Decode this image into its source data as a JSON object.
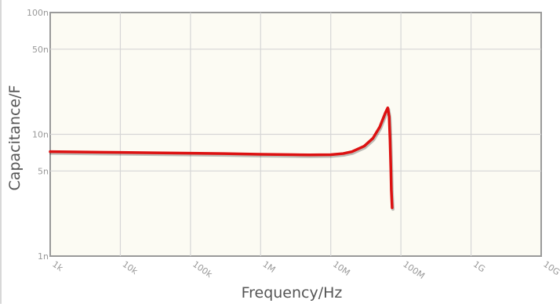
{
  "chart_data": {
    "type": "line",
    "title": "",
    "xlabel": "Frequency/Hz",
    "ylabel": "Capacitance/F",
    "x_scale": "log",
    "y_scale": "log",
    "xlim": [
      1000,
      10000000000
    ],
    "ylim": [
      1,
      100
    ],
    "grid": true,
    "x_ticks": [
      {
        "value": 1000,
        "label": "1k"
      },
      {
        "value": 10000,
        "label": "10k"
      },
      {
        "value": 100000,
        "label": "100k"
      },
      {
        "value": 1000000,
        "label": "1M"
      },
      {
        "value": 10000000,
        "label": "10M"
      },
      {
        "value": 100000000,
        "label": "100M"
      },
      {
        "value": 1000000000,
        "label": "1G"
      },
      {
        "value": 10000000000,
        "label": "10G"
      }
    ],
    "y_ticks": [
      {
        "value": 1,
        "label": "1n"
      },
      {
        "value": 5,
        "label": "5n"
      },
      {
        "value": 10,
        "label": "10n"
      },
      {
        "value": 50,
        "label": "50n"
      },
      {
        "value": 100,
        "label": "100n"
      }
    ],
    "series": [
      {
        "color": "#dd1111",
        "x": [
          1000,
          3000,
          10000,
          30000,
          100000,
          300000,
          1000000,
          3000000,
          5000000,
          10000000,
          15000000,
          20000000,
          30000000,
          40000000,
          50000000,
          60000000,
          65000000,
          68000000,
          70000000,
          72000000,
          73000000,
          75000000
        ],
        "y": [
          7.2,
          7.15,
          7.1,
          7.05,
          7.0,
          6.95,
          6.85,
          6.8,
          6.78,
          6.8,
          6.95,
          7.2,
          8.0,
          9.3,
          11.5,
          15.0,
          16.5,
          14.0,
          9.0,
          5.0,
          3.5,
          2.5
        ]
      }
    ]
  }
}
